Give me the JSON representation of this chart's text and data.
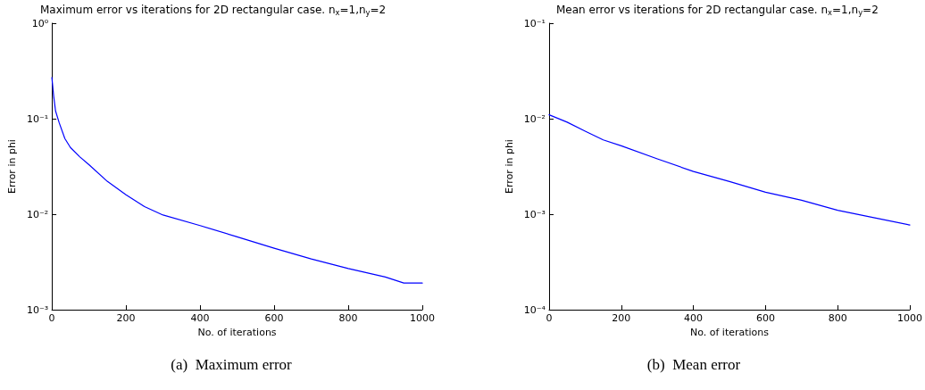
{
  "chart_data": [
    {
      "type": "line",
      "title": "Maximum error vs iterations for 2D rectangular case. n$_{x}$=1,n$_{y}$=2",
      "xlabel": "No. of iterations",
      "ylabel": "Error in phi",
      "annotations": [
        "(a)  Maximum error"
      ],
      "log": "y",
      "grid": false,
      "marker": "none",
      "line_style": "solid",
      "x": [
        0,
        5,
        10,
        20,
        35,
        50,
        75,
        100,
        150,
        200,
        250,
        300,
        400,
        500,
        600,
        700,
        800,
        900,
        950,
        1000
      ],
      "series": [
        {
          "color": "#0000ff",
          "values": [
            0.27,
            0.17,
            0.12,
            0.09,
            0.062,
            0.05,
            0.04,
            0.033,
            0.022,
            0.016,
            0.012,
            0.0098,
            0.0076,
            0.0058,
            0.0044,
            0.0034,
            0.0027,
            0.0022,
            0.0019,
            0.0019
          ]
        }
      ],
      "xlim": [
        0,
        1000
      ],
      "xticks": [
        0,
        200,
        400,
        600,
        800,
        1000
      ],
      "ylim": [
        0.001,
        1
      ],
      "yticks": [
        {
          "value": 0.001,
          "label": "10⁻³"
        },
        {
          "value": 0.01,
          "label": "10⁻²"
        },
        {
          "value": 0.1,
          "label": "10⁻¹"
        },
        {
          "value": 1,
          "label": "10⁰"
        }
      ]
    },
    {
      "type": "line",
      "title": "Mean error vs iterations for 2D rectangular case. n$_{x}$=1,n$_{y}$=2",
      "xlabel": "No. of iterations",
      "ylabel": "Error in phi",
      "annotations": [
        "(b)  Mean error"
      ],
      "log": "y",
      "grid": false,
      "marker": "none",
      "line_style": "solid",
      "x": [
        0,
        50,
        100,
        150,
        200,
        300,
        400,
        500,
        600,
        700,
        800,
        900,
        1000
      ],
      "series": [
        {
          "color": "#0000ff",
          "values": [
            0.011,
            0.0092,
            0.0074,
            0.006,
            0.0052,
            0.0038,
            0.0028,
            0.0022,
            0.0017,
            0.0014,
            0.0011,
            0.00092,
            0.00077
          ]
        }
      ],
      "xlim": [
        0,
        1000
      ],
      "xticks": [
        0,
        200,
        400,
        600,
        800,
        1000
      ],
      "ylim": [
        0.0001,
        0.1
      ],
      "yticks": [
        {
          "value": 0.0001,
          "label": "10⁻⁴"
        },
        {
          "value": 0.001,
          "label": "10⁻³"
        },
        {
          "value": 0.01,
          "label": "10⁻²"
        },
        {
          "value": 0.1,
          "label": "10⁻¹"
        }
      ]
    }
  ]
}
